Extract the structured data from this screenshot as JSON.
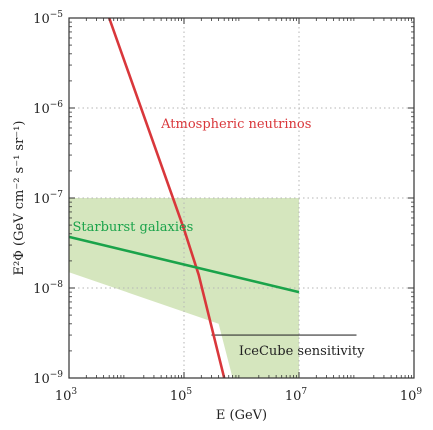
{
  "chart_data": {
    "type": "line",
    "xlabel": "E (GeV)",
    "ylabel": "E²Φ (GeV cm⁻² s⁻¹ sr⁻¹)",
    "x_scale": "log",
    "y_scale": "log",
    "xlim": [
      1000,
      1000000000
    ],
    "ylim": [
      1e-09,
      1e-05
    ],
    "grid": true,
    "x_ticks": [
      {
        "value": 1000,
        "base": "10",
        "exp": "3"
      },
      {
        "value": 100000,
        "base": "10",
        "exp": "5"
      },
      {
        "value": 10000000,
        "base": "10",
        "exp": "7"
      },
      {
        "value": 1000000000,
        "base": "10",
        "exp": "9"
      }
    ],
    "y_ticks": [
      {
        "value": 1e-09,
        "base": "10",
        "exp": "−9"
      },
      {
        "value": 1e-08,
        "base": "10",
        "exp": "−8"
      },
      {
        "value": 1e-07,
        "base": "10",
        "exp": "−7"
      },
      {
        "value": 1e-06,
        "base": "10",
        "exp": "−6"
      },
      {
        "value": 1e-05,
        "base": "10",
        "exp": "−5"
      }
    ],
    "series": [
      {
        "name": "Atmospheric neutrinos",
        "color": "#d9373b",
        "points": [
          [
            5000,
            1e-05
          ],
          [
            100000,
            4.5e-08
          ],
          [
            180000,
            1.4e-08
          ],
          [
            500000,
            1e-09
          ]
        ]
      },
      {
        "name": "Starburst galaxies",
        "color": "#1aa34a",
        "points": [
          [
            1000,
            3.7e-08
          ],
          [
            10000000,
            9e-09
          ]
        ]
      }
    ],
    "regions": [
      {
        "name": "starburst-band",
        "color": "#d5e6be",
        "points": [
          [
            1000,
            1e-07
          ],
          [
            10000000,
            1e-07
          ],
          [
            10000000,
            1e-09
          ],
          [
            700000,
            1e-09
          ],
          [
            400000,
            4e-09
          ],
          [
            1000,
            1.5e-08
          ]
        ]
      }
    ],
    "sensitivity": {
      "name": "IceCube sensitivity",
      "value": 3e-09,
      "x_range": [
        300000,
        100000000
      ]
    },
    "annotations": [
      {
        "text": "Atmospheric neutrinos",
        "x": 40000,
        "y": 6e-07,
        "color": "#d9373b"
      },
      {
        "text": "Starburst galaxies",
        "x": 1150,
        "y": 4.3e-08,
        "color": "#1aa34a"
      },
      {
        "text": "IceCube sensitivity",
        "x": 900000,
        "y": 1.8e-09,
        "color": "#222222"
      }
    ]
  }
}
